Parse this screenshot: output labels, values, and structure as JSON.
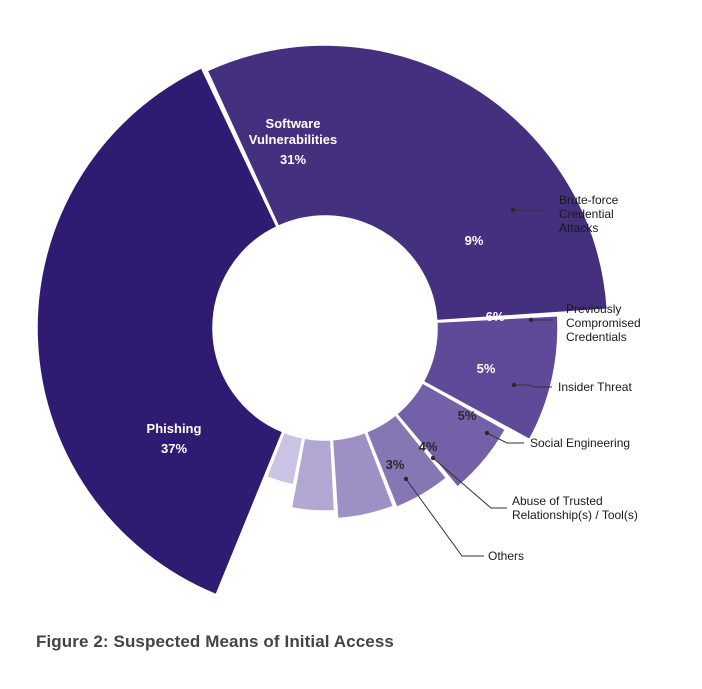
{
  "caption": "Figure 2: Suspected Means of Initial Access",
  "chart_data": {
    "type": "pie",
    "title": "Figure 2: Suspected Means of Initial Access",
    "categories": [
      "Software Vulnerabilities",
      "Brute-force Credential Attacks",
      "Previously Compromised Credentials",
      "Insider Threat",
      "Social Engineering",
      "Abuse of Trusted Relationship(s) / Tool(s)",
      "Others",
      "Phishing"
    ],
    "values": [
      31,
      9,
      6,
      5,
      5,
      4,
      3,
      37
    ],
    "value_labels": [
      "31%",
      "9%",
      "6%",
      "5%",
      "5%",
      "4%",
      "3%",
      "37%"
    ],
    "colors": [
      "#44307f",
      "#5e4a98",
      "#7360a8",
      "#8676b4",
      "#9e90c4",
      "#b2a7d2",
      "#cbc3e3",
      "#2f1b72"
    ],
    "label_lines": [
      [
        "Software",
        "Vulnerabilities"
      ],
      [
        "Brute-force",
        "Credential",
        "Attacks"
      ],
      [
        "Previously",
        "Compromised",
        "Credentials"
      ],
      [
        "Insider Threat"
      ],
      [
        "Social Engineering"
      ],
      [
        "Abuse of Trusted",
        "Relationship(s) / Tool(s)"
      ],
      [
        "Others"
      ],
      [
        "Phishing"
      ]
    ]
  }
}
